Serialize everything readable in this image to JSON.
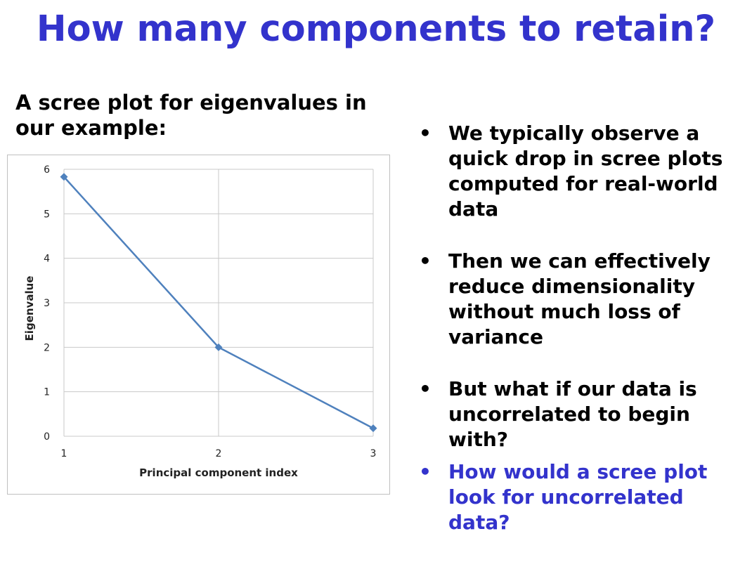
{
  "slide": {
    "title": "How many components to retain?",
    "subtitle": "A scree plot for eigenvalues in our example:",
    "title_color": "#3333cc",
    "highlight_color": "#3333cc"
  },
  "bullets": [
    {
      "text": "We typically observe a quick drop in scree plots computed for real-world data",
      "highlight": false
    },
    {
      "text": "Then we can effectively reduce dimensionality without much loss of variance",
      "highlight": false
    },
    {
      "text": "But what if our data is uncorrelated to begin with?",
      "highlight": false
    },
    {
      "text": "How would a scree plot look for uncorrelated data?",
      "highlight": true
    }
  ],
  "chart_data": {
    "type": "line",
    "x": [
      1,
      2,
      3
    ],
    "series": [
      {
        "values": [
          5.83,
          2.0,
          0.18
        ],
        "color": "#4f81bd",
        "marker": "diamond"
      }
    ],
    "xlabel": "Principal component index",
    "ylabel": "Eigenvalue",
    "xlim": [
      1,
      3
    ],
    "ylim": [
      0,
      6
    ],
    "xticks": [
      "1",
      "2",
      "3"
    ],
    "yticks": [
      "0",
      "1",
      "2",
      "3",
      "4",
      "5",
      "6"
    ],
    "grid": true,
    "legend": "none"
  }
}
